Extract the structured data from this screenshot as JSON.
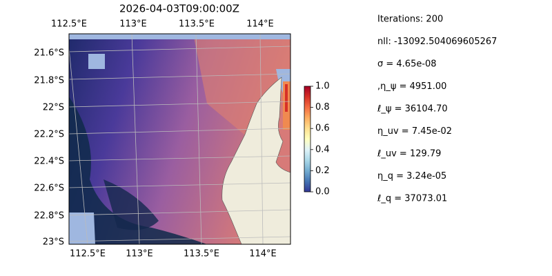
{
  "title": "2026-04-03T09:00:00Z",
  "map": {
    "x_tick_labels_top": [
      "112.5°E",
      "113°E",
      "113.5°E",
      "114°E"
    ],
    "x_tick_labels_bottom": [
      "112.5°E",
      "113°E",
      "113.5°E",
      "114°E"
    ],
    "y_tick_labels": [
      "21.6°S",
      "21.8°S",
      "22°S",
      "22.2°S",
      "22.4°S",
      "22.6°S",
      "22.8°S",
      "23°S"
    ]
  },
  "colorbar": {
    "lim": [
      0,
      1
    ],
    "ticks": [
      {
        "value": 0,
        "label": "0.0"
      },
      0.2,
      0.4,
      0.6,
      0.8,
      {
        "value": 1,
        "label": "1.0"
      }
    ]
  },
  "stats": [
    "Iterations: 200",
    "nll: -13092.504069605267",
    "σ = 4.65e-08",
    ",η_ψ = 4951.00",
    "ℓ_ψ = 36104.70",
    "η_uv = 7.45e-02",
    "ℓ_uv = 129.79",
    "η_q = 3.24e-05",
    "ℓ_q = 37073.01"
  ]
}
